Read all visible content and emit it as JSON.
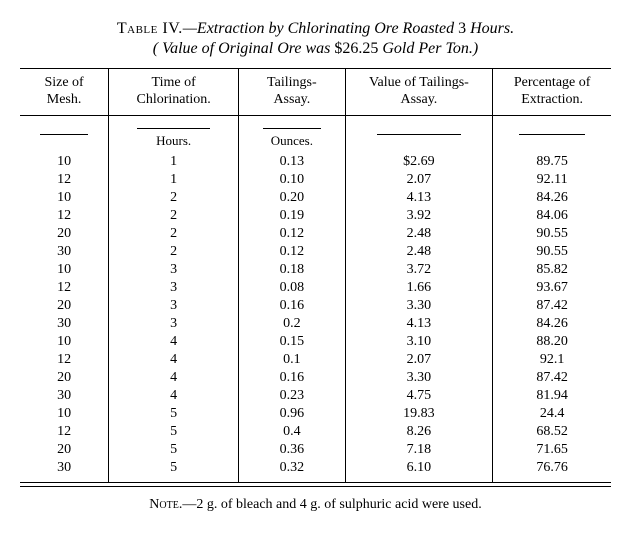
{
  "title": {
    "label": "Table IV.",
    "desc_pre": "—Extraction by Chlorinating Ore Roasted ",
    "desc_num": "3",
    "desc_post": " Hours."
  },
  "subtitle": {
    "pre": "( Value of Original Ore was ",
    "value": "$26.25",
    "post": " Gold Per Ton.)"
  },
  "columns": [
    "Size of\nMesh.",
    "Time of\nChlorination.",
    "Tailings-\nAssay.",
    "Value of Tailings-\nAssay.",
    "Percentage of\nExtraction."
  ],
  "units": [
    "",
    "Hours.",
    "Ounces.",
    "",
    ""
  ],
  "rows": [
    [
      "10",
      "1",
      "0.13",
      "$2.69",
      "89.75"
    ],
    [
      "12",
      "1",
      "0.10",
      "2.07",
      "92.11"
    ],
    [
      "10",
      "2",
      "0.20",
      "4.13",
      "84.26"
    ],
    [
      "12",
      "2",
      "0.19",
      "3.92",
      "84.06"
    ],
    [
      "20",
      "2",
      "0.12",
      "2.48",
      "90.55"
    ],
    [
      "30",
      "2",
      "0.12",
      "2.48",
      "90.55"
    ],
    [
      "10",
      "3",
      "0.18",
      "3.72",
      "85.82"
    ],
    [
      "12",
      "3",
      "0.08",
      "1.66",
      "93.67"
    ],
    [
      "20",
      "3",
      "0.16",
      "3.30",
      "87.42"
    ],
    [
      "30",
      "3",
      "0.2",
      "4.13",
      "84.26"
    ],
    [
      "10",
      "4",
      "0.15",
      "3.10",
      "88.20"
    ],
    [
      "12",
      "4",
      "0.1",
      "2.07",
      "92.1"
    ],
    [
      "20",
      "4",
      "0.16",
      "3.30",
      "87.42"
    ],
    [
      "30",
      "4",
      "0.23",
      "4.75",
      "81.94"
    ],
    [
      "10",
      "5",
      "0.96",
      "19.83",
      "24.4"
    ],
    [
      "12",
      "5",
      "0.4",
      "8.26",
      "68.52"
    ],
    [
      "20",
      "5",
      "0.36",
      "7.18",
      "71.65"
    ],
    [
      "30",
      "5",
      "0.32",
      "6.10",
      "76.76"
    ]
  ],
  "note": {
    "label": "Note.",
    "text": "—2 g. of bleach and 4 g. of sulphuric acid were used."
  },
  "styling": {
    "font_family": "Times New Roman",
    "background": "#ffffff",
    "text_color": "#000000",
    "border_color": "#000000",
    "col_widths_pct": [
      15,
      22,
      18,
      25,
      20
    ]
  }
}
